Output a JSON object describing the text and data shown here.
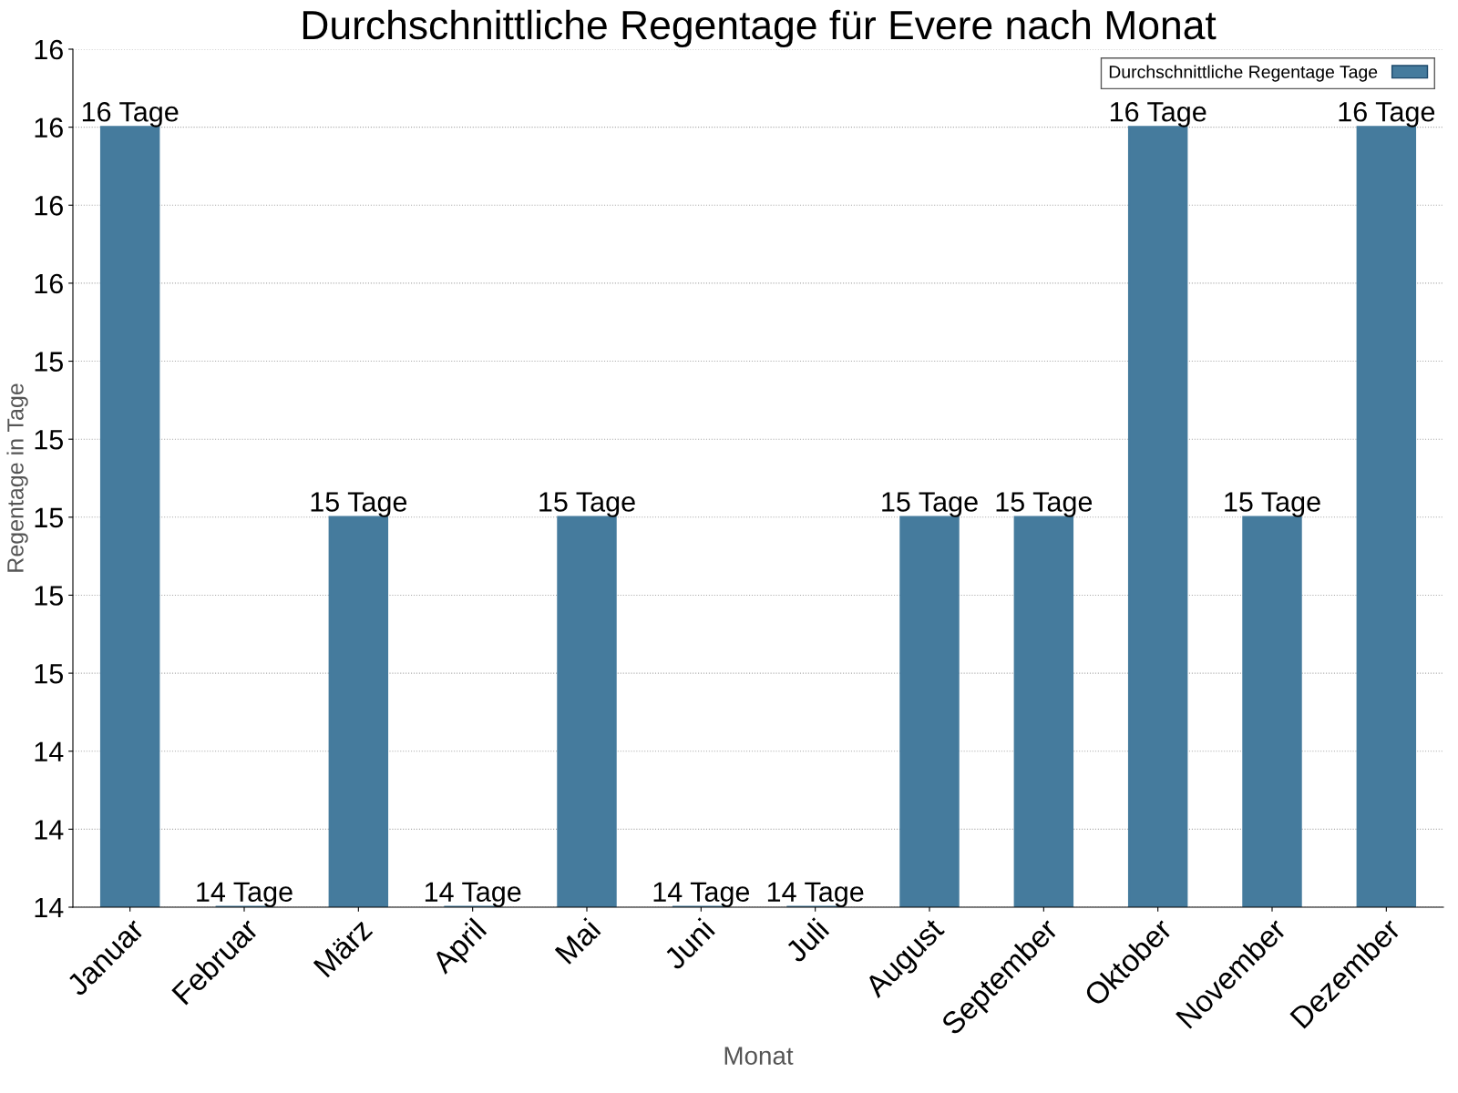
{
  "chart_data": {
    "type": "bar",
    "title": "Durchschnittliche Regentage für Evere nach Monat",
    "xlabel": "Monat",
    "ylabel": "Regentage in Tage",
    "categories": [
      "Januar",
      "Februar",
      "März",
      "April",
      "Mai",
      "Juni",
      "Juli",
      "August",
      "September",
      "Oktober",
      "November",
      "Dezember"
    ],
    "series": [
      {
        "name": "Durchschnittliche Regentage Tage",
        "color": "#457b9d",
        "values": [
          16,
          14,
          15,
          14,
          15,
          14,
          14,
          15,
          15,
          16,
          15,
          16
        ],
        "value_labels": [
          "16 Tage",
          "14 Tage",
          "15 Tage",
          "14 Tage",
          "15 Tage",
          "14 Tage",
          "14 Tage",
          "15 Tage",
          "15 Tage",
          "16 Tage",
          "15 Tage",
          "16 Tage"
        ]
      }
    ],
    "ylim": [
      14,
      16.2
    ],
    "yticks": [
      {
        "value": 14,
        "label": "14"
      },
      {
        "value": 14.2,
        "label": "14"
      },
      {
        "value": 14.4,
        "label": "14"
      },
      {
        "value": 14.6,
        "label": "15"
      },
      {
        "value": 14.8,
        "label": "15"
      },
      {
        "value": 15,
        "label": "15"
      },
      {
        "value": 15.2,
        "label": "15"
      },
      {
        "value": 15.4,
        "label": "15"
      },
      {
        "value": 15.6,
        "label": "16"
      },
      {
        "value": 15.8,
        "label": "16"
      },
      {
        "value": 16,
        "label": "16"
      },
      {
        "value": 16.2,
        "label": "16"
      }
    ],
    "grid": "y",
    "legend": "top right"
  }
}
